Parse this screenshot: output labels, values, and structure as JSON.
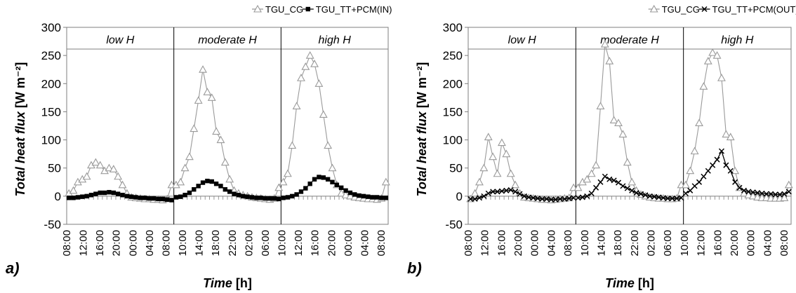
{
  "chart_data": [
    {
      "type": "line",
      "sub_label": "a)",
      "ylabel_main": "Total heat flux",
      "ylabel_unit": "[W m⁻²]",
      "xlabel_main": "Time",
      "xlabel_unit": "[h]",
      "ylim": [
        -50,
        300
      ],
      "yticks": [
        "-50",
        "0",
        "50",
        "100",
        "150",
        "200",
        "250",
        "300"
      ],
      "panels": [
        "low H",
        "moderate H",
        "high H"
      ],
      "x_tick_labels": [
        "08:00",
        "12:00",
        "16:00",
        "20:00",
        "00:00",
        "04:00",
        "08:00",
        "10:00",
        "14:00",
        "18:00",
        "22:00",
        "02:00",
        "06:00",
        "10:00",
        "12:00",
        "16:00",
        "20:00",
        "00:00",
        "04:00",
        "08:00"
      ],
      "legend": [
        {
          "name": "TGU_CG",
          "marker": "triangle-open",
          "color": "#9a9a9a"
        },
        {
          "name": "TGU_TT+PCM(IN)",
          "marker": "square-filled",
          "color": "#000000"
        }
      ],
      "series": [
        {
          "name": "TGU_CG",
          "values": [
            [
              5,
              10,
              25,
              30,
              35,
              55,
              60,
              55,
              45,
              50,
              48,
              35,
              20,
              5,
              -2,
              -3,
              -4,
              -5,
              -5,
              -6,
              -6,
              -7,
              -5,
              20
            ],
            [
              20,
              25,
              50,
              70,
              120,
              170,
              225,
              185,
              175,
              115,
              100,
              60,
              30,
              10,
              5,
              2,
              0,
              -2,
              -3,
              -4,
              -5,
              -6,
              -4,
              15
            ],
            [
              25,
              40,
              90,
              160,
              210,
              230,
              250,
              235,
              200,
              145,
              90,
              50,
              20,
              5,
              2,
              0,
              -2,
              -3,
              -4,
              -5,
              -5,
              -6,
              -4,
              25
            ]
          ]
        },
        {
          "name": "TGU_TT+PCM(IN)",
          "values": [
            [
              -3,
              -3,
              -2,
              -1,
              0,
              2,
              4,
              6,
              6,
              7,
              6,
              4,
              2,
              0,
              -1,
              -2,
              -3,
              -3,
              -4,
              -4,
              -5,
              -5,
              -6,
              -7
            ],
            [
              -2,
              -1,
              2,
              6,
              12,
              18,
              24,
              27,
              26,
              22,
              18,
              12,
              8,
              4,
              2,
              0,
              -1,
              -2,
              -3,
              -3,
              -4,
              -4,
              -4,
              -5
            ],
            [
              -3,
              -2,
              0,
              3,
              8,
              14,
              22,
              30,
              34,
              33,
              30,
              25,
              20,
              15,
              10,
              6,
              3,
              1,
              0,
              -1,
              -2,
              -2,
              -3,
              -3
            ]
          ]
        }
      ]
    },
    {
      "type": "line",
      "sub_label": "b)",
      "ylabel_main": "Total heat flux",
      "ylabel_unit": "[W m⁻²]",
      "xlabel_main": "Time",
      "xlabel_unit": "[h]",
      "ylim": [
        -50,
        300
      ],
      "yticks": [
        "-50",
        "0",
        "50",
        "100",
        "150",
        "200",
        "250",
        "300"
      ],
      "panels": [
        "low H",
        "moderate H",
        "high H"
      ],
      "x_tick_labels": [
        "08:00",
        "12:00",
        "16:00",
        "20:00",
        "00:00",
        "04:00",
        "08:00",
        "10:00",
        "14:00",
        "18:00",
        "22:00",
        "02:00",
        "06:00",
        "10:00",
        "12:00",
        "16:00",
        "20:00",
        "00:00",
        "04:00",
        "08:00"
      ],
      "legend": [
        {
          "name": "TGU_CG",
          "marker": "triangle-open",
          "color": "#9a9a9a"
        },
        {
          "name": "TGU_TT+PCM(OUT)",
          "marker": "cross",
          "color": "#000000"
        }
      ],
      "series": [
        {
          "name": "TGU_CG",
          "values": [
            [
              -5,
              5,
              25,
              50,
              105,
              70,
              40,
              95,
              75,
              40,
              20,
              5,
              -2,
              -3,
              -4,
              -5,
              -6,
              -6,
              -7,
              -6,
              -5,
              -4,
              -3,
              15
            ],
            [
              15,
              25,
              30,
              40,
              55,
              160,
              270,
              240,
              135,
              130,
              110,
              60,
              25,
              10,
              3,
              0,
              -2,
              -3,
              -4,
              -4,
              -5,
              -5,
              -4,
              20
            ],
            [
              20,
              45,
              80,
              130,
              195,
              240,
              255,
              250,
              210,
              110,
              105,
              45,
              15,
              5,
              2,
              0,
              -2,
              -3,
              -3,
              -4,
              -4,
              -4,
              -3,
              20
            ]
          ]
        },
        {
          "name": "TGU_TT+PCM(OUT)",
          "values": [
            [
              -5,
              -5,
              -3,
              0,
              5,
              8,
              8,
              9,
              10,
              11,
              8,
              4,
              0,
              -2,
              -3,
              -4,
              -5,
              -5,
              -6,
              -6,
              -5,
              -5,
              -4,
              -3
            ],
            [
              -3,
              -2,
              0,
              5,
              15,
              25,
              35,
              30,
              28,
              24,
              18,
              14,
              10,
              6,
              4,
              2,
              0,
              -1,
              -2,
              -3,
              -4,
              -4,
              -4,
              -3
            ],
            [
              5,
              10,
              18,
              25,
              35,
              45,
              55,
              65,
              80,
              55,
              45,
              25,
              15,
              10,
              8,
              7,
              6,
              5,
              4,
              4,
              3,
              3,
              4,
              8
            ]
          ]
        }
      ]
    }
  ]
}
